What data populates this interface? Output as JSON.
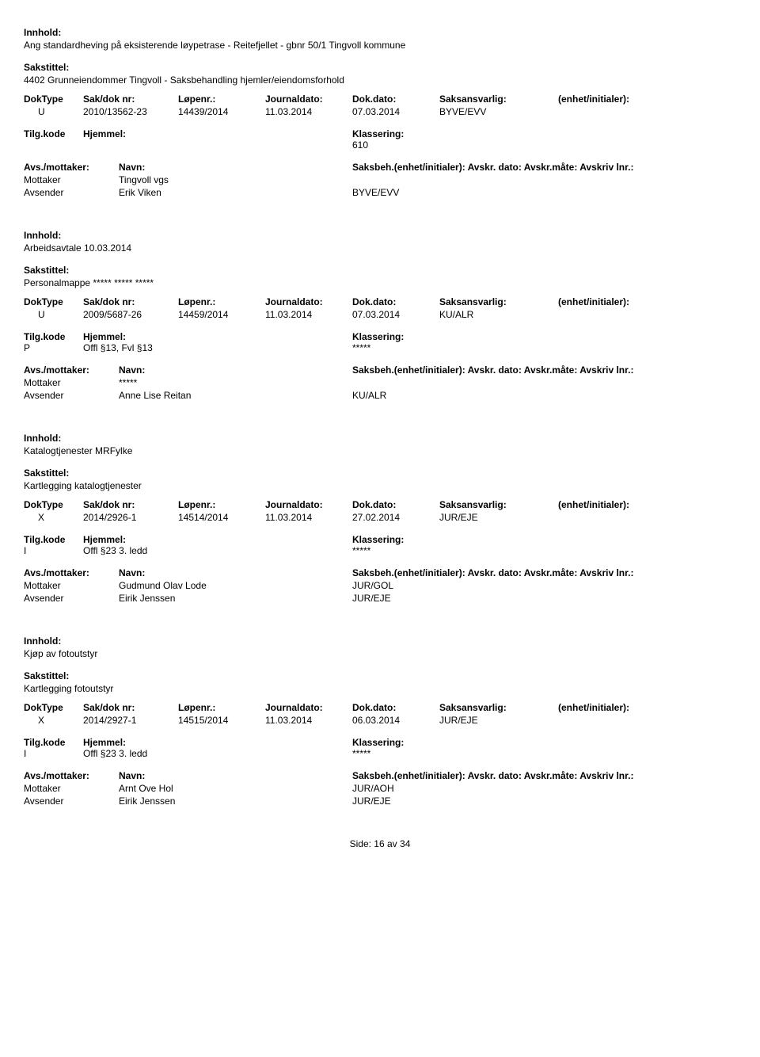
{
  "labels": {
    "innhold": "Innhold:",
    "sakstittel": "Sakstittel:",
    "doktype": "DokType",
    "sakdok": "Sak/dok nr:",
    "lopenr": "Løpenr.:",
    "journaldato": "Journaldato:",
    "dokdato": "Dok.dato:",
    "saksansvarlig": "Saksansvarlig:",
    "enhet": "(enhet/initialer):",
    "tilgkode": "Tilg.kode",
    "hjemmel": "Hjemmel:",
    "klassering": "Klassering:",
    "avsmottaker": "Avs./mottaker:",
    "navn": "Navn:",
    "saksbeh": "Saksbeh.(enhet/initialer): Avskr. dato:  Avskr.måte:  Avskriv lnr.:",
    "mottaker": "Mottaker",
    "avsender": "Avsender"
  },
  "records": [
    {
      "innhold": "Ang standardheving på eksisterende løypetrase - Reitefjellet - gbnr 50/1 Tingvoll kommune",
      "sakstittel": "4402 Grunneiendommer Tingvoll - Saksbehandling hjemler/eiendomsforhold",
      "doktype": "U",
      "sakdok": "2010/13562-23",
      "lopenr": "14439/2014",
      "journaldato": "11.03.2014",
      "dokdato": "07.03.2014",
      "saksansvarlig": "BYVE/EVV",
      "tilgkode": "",
      "hjemmel": "",
      "klassering": "610",
      "parties": [
        {
          "role": "Mottaker",
          "name": "Tingvoll vgs",
          "saksbeh": ""
        },
        {
          "role": "Avsender",
          "name": "Erik Viken",
          "saksbeh": "BYVE/EVV"
        }
      ]
    },
    {
      "innhold": "Arbeidsavtale 10.03.2014",
      "sakstittel": "Personalmappe ***** ***** *****",
      "doktype": "U",
      "sakdok": "2009/5687-26",
      "lopenr": "14459/2014",
      "journaldato": "11.03.2014",
      "dokdato": "07.03.2014",
      "saksansvarlig": "KU/ALR",
      "tilgkode": "P",
      "hjemmel": "Offl §13, Fvl §13",
      "klassering": "*****",
      "parties": [
        {
          "role": "Mottaker",
          "name": "*****",
          "saksbeh": ""
        },
        {
          "role": "Avsender",
          "name": "Anne Lise Reitan",
          "saksbeh": "KU/ALR"
        }
      ]
    },
    {
      "innhold": "Katalogtjenester MRFylke",
      "sakstittel": "Kartlegging katalogtjenester",
      "doktype": "X",
      "sakdok": "2014/2926-1",
      "lopenr": "14514/2014",
      "journaldato": "11.03.2014",
      "dokdato": "27.02.2014",
      "saksansvarlig": "JUR/EJE",
      "tilgkode": "I",
      "hjemmel": "Offl §23 3. ledd",
      "klassering": "*****",
      "parties": [
        {
          "role": "Mottaker",
          "name": "Gudmund Olav Lode",
          "saksbeh": "JUR/GOL"
        },
        {
          "role": "Avsender",
          "name": "Eirik Jenssen",
          "saksbeh": "JUR/EJE"
        }
      ]
    },
    {
      "innhold": "Kjøp av fotoutstyr",
      "sakstittel": "Kartlegging fotoutstyr",
      "doktype": "X",
      "sakdok": "2014/2927-1",
      "lopenr": "14515/2014",
      "journaldato": "11.03.2014",
      "dokdato": "06.03.2014",
      "saksansvarlig": "JUR/EJE",
      "tilgkode": "I",
      "hjemmel": "Offl §23 3. ledd",
      "klassering": "*****",
      "parties": [
        {
          "role": "Mottaker",
          "name": "Arnt Ove Hol",
          "saksbeh": "JUR/AOH"
        },
        {
          "role": "Avsender",
          "name": "Eirik Jenssen",
          "saksbeh": "JUR/EJE"
        }
      ]
    }
  ],
  "footer": {
    "side": "Side:",
    "page": "16",
    "av": "av",
    "total": "34"
  }
}
